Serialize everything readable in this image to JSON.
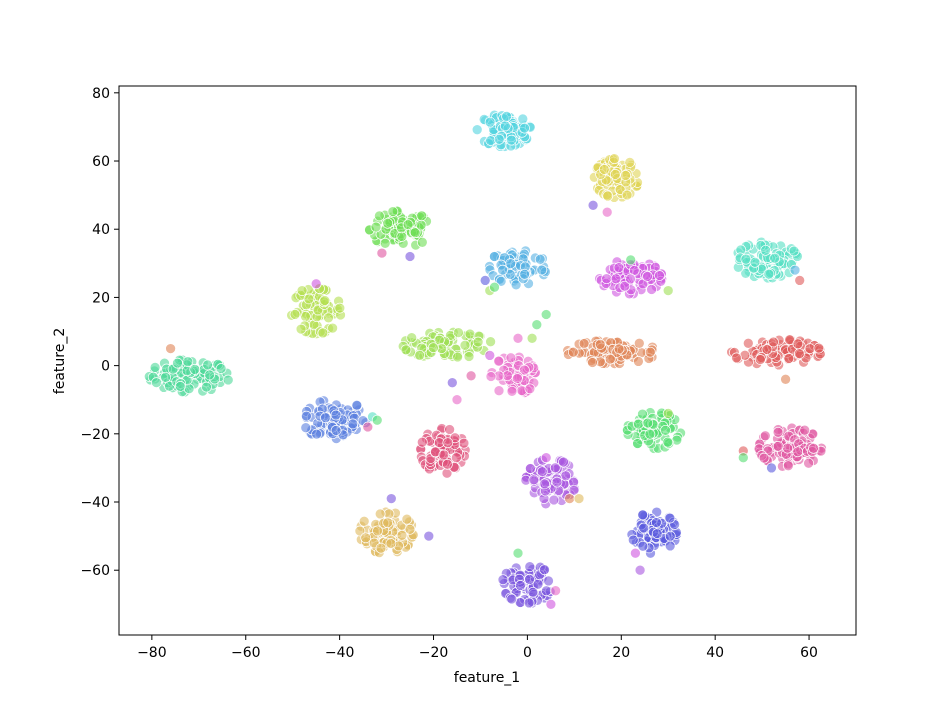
{
  "chart_data": {
    "type": "scatter",
    "title": "",
    "xlabel": "feature_1",
    "ylabel": "feature_2",
    "xlim": [
      -87,
      70
    ],
    "ylim": [
      -79,
      82
    ],
    "xticks": [
      -80,
      -60,
      -40,
      -20,
      0,
      20,
      40,
      60
    ],
    "yticks": [
      -60,
      -40,
      -20,
      0,
      20,
      40,
      60,
      80
    ],
    "grid": false,
    "legend": "none",
    "marker_opacity": 0.6,
    "clusters": [
      {
        "center": [
          -72,
          -3
        ],
        "spread": [
          4.5,
          2.5
        ],
        "count": 90,
        "color": "#4fd99a"
      },
      {
        "center": [
          -41,
          -16
        ],
        "spread": [
          3.5,
          3.2
        ],
        "count": 85,
        "color": "#5b80e0"
      },
      {
        "center": [
          -30,
          -49
        ],
        "spread": [
          3.0,
          3.2
        ],
        "count": 80,
        "color": "#e0b95e"
      },
      {
        "center": [
          -45,
          16
        ],
        "spread": [
          2.8,
          3.5
        ],
        "count": 70,
        "color": "#b4e050"
      },
      {
        "center": [
          -27,
          40
        ],
        "spread": [
          3.5,
          2.8
        ],
        "count": 90,
        "color": "#6ede55"
      },
      {
        "center": [
          -17,
          6
        ],
        "spread": [
          5.0,
          2.0
        ],
        "count": 85,
        "color": "#9ee055"
      },
      {
        "center": [
          -5,
          69
        ],
        "spread": [
          3.0,
          2.5
        ],
        "count": 85,
        "color": "#54d4e0"
      },
      {
        "center": [
          -2,
          29
        ],
        "spread": [
          3.2,
          2.8
        ],
        "count": 85,
        "color": "#56b0e3"
      },
      {
        "center": [
          -18,
          -25
        ],
        "spread": [
          2.5,
          3.5
        ],
        "count": 80,
        "color": "#e0507a"
      },
      {
        "center": [
          -3,
          -3
        ],
        "spread": [
          2.5,
          3.0
        ],
        "count": 60,
        "color": "#e868c8"
      },
      {
        "center": [
          5,
          -34
        ],
        "spread": [
          2.8,
          3.5
        ],
        "count": 80,
        "color": "#a856e0"
      },
      {
        "center": [
          0,
          -64
        ],
        "spread": [
          2.8,
          3.0
        ],
        "count": 80,
        "color": "#7a55de"
      },
      {
        "center": [
          18,
          4
        ],
        "spread": [
          5.0,
          1.8
        ],
        "count": 85,
        "color": "#e08455"
      },
      {
        "center": [
          19,
          55
        ],
        "spread": [
          2.5,
          3.0
        ],
        "count": 80,
        "color": "#e0d455"
      },
      {
        "center": [
          22,
          26
        ],
        "spread": [
          3.5,
          2.6
        ],
        "count": 85,
        "color": "#cf55e0"
      },
      {
        "center": [
          27,
          -19
        ],
        "spread": [
          3.0,
          2.8
        ],
        "count": 80,
        "color": "#55de72"
      },
      {
        "center": [
          27,
          -49
        ],
        "spread": [
          2.5,
          3.2
        ],
        "count": 80,
        "color": "#5a5ade"
      },
      {
        "center": [
          51,
          31
        ],
        "spread": [
          3.5,
          2.8
        ],
        "count": 85,
        "color": "#55e0c3"
      },
      {
        "center": [
          53,
          4
        ],
        "spread": [
          5.0,
          2.0
        ],
        "count": 90,
        "color": "#e05a5a"
      },
      {
        "center": [
          56,
          -24
        ],
        "spread": [
          3.5,
          3.0
        ],
        "count": 85,
        "color": "#e055a0"
      }
    ],
    "outliers": [
      [
        -76,
        5,
        "#e08455"
      ],
      [
        -48,
        22,
        "#b4e050"
      ],
      [
        -45,
        24,
        "#cf55e0"
      ],
      [
        -31,
        33,
        "#e055a0"
      ],
      [
        -25,
        32,
        "#7a55de"
      ],
      [
        -34,
        -18,
        "#e055a0"
      ],
      [
        -33,
        -15,
        "#55e0c3"
      ],
      [
        -29,
        -39,
        "#7a55de"
      ],
      [
        -21,
        -50,
        "#7a55de"
      ],
      [
        -16,
        -5,
        "#7a55de"
      ],
      [
        -15,
        -10,
        "#e868c8"
      ],
      [
        -12,
        -3,
        "#e055a0"
      ],
      [
        -8,
        3,
        "#cf55e0"
      ],
      [
        -9,
        25,
        "#5a5ade"
      ],
      [
        -8,
        22,
        "#9ee055"
      ],
      [
        -7,
        23,
        "#55de72"
      ],
      [
        -2,
        8,
        "#e868c8"
      ],
      [
        1,
        8,
        "#9ee055"
      ],
      [
        2,
        12,
        "#55de72"
      ],
      [
        4,
        15,
        "#55de72"
      ],
      [
        4,
        -27,
        "#cf55e0"
      ],
      [
        9,
        -39,
        "#e08455"
      ],
      [
        14,
        47,
        "#7a55de"
      ],
      [
        17,
        45,
        "#e868c8"
      ],
      [
        22,
        31,
        "#55de72"
      ],
      [
        30,
        22,
        "#9ee055"
      ],
      [
        24,
        -60,
        "#a856e0"
      ],
      [
        23,
        -55,
        "#cf55e0"
      ],
      [
        46,
        -25,
        "#e05a5a"
      ],
      [
        46,
        -27,
        "#55de72"
      ],
      [
        58,
        25,
        "#e05a5a"
      ],
      [
        57,
        28,
        "#56b0e3"
      ],
      [
        55,
        -4,
        "#e08455"
      ],
      [
        52,
        -30,
        "#5a5ade"
      ],
      [
        5,
        -70,
        "#cf55e0"
      ],
      [
        6,
        -66,
        "#e868c8"
      ],
      [
        -2,
        -55,
        "#55de72"
      ],
      [
        11,
        -39,
        "#e0b95e"
      ],
      [
        30,
        -14,
        "#9ee055"
      ],
      [
        -32,
        -16,
        "#55de72"
      ]
    ]
  }
}
